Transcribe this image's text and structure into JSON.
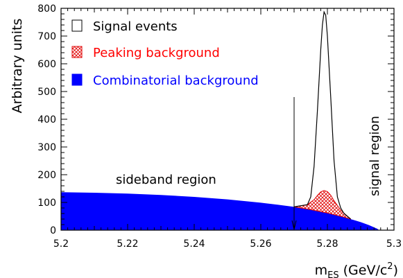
{
  "chart_data": {
    "type": "area",
    "title": "",
    "xlabel": "m_ES (GeV/c^2)",
    "xlabel_parts": {
      "main": "m",
      "sub": "ES",
      "unit": " (GeV/c",
      "sup": "2",
      "close": ")"
    },
    "ylabel": "Arbitrary units",
    "xlim": [
      5.2,
      5.3
    ],
    "ylim": [
      0,
      800
    ],
    "xticks": [
      5.2,
      5.22,
      5.24,
      5.26,
      5.28,
      5.3
    ],
    "xtick_labels": [
      "5.2",
      "5.22",
      "5.24",
      "5.26",
      "5.28",
      "5.3"
    ],
    "yticks": [
      0,
      100,
      200,
      300,
      400,
      500,
      600,
      700,
      800
    ],
    "ytick_labels": [
      "0",
      "100",
      "200",
      "300",
      "400",
      "500",
      "600",
      "700",
      "800"
    ],
    "grid": false,
    "legend_position": "top-left",
    "series": [
      {
        "name": "Combinatorial background",
        "style": "filled",
        "color": "#0000ff",
        "x": [
          5.2,
          5.21,
          5.22,
          5.23,
          5.24,
          5.25,
          5.26,
          5.265,
          5.27,
          5.275,
          5.28,
          5.285,
          5.29,
          5.2925,
          5.295,
          5.2955
        ],
        "values": [
          137,
          135,
          132,
          127,
          120,
          111,
          99,
          92,
          84,
          74,
          62,
          47,
          29,
          18,
          5,
          0
        ]
      },
      {
        "name": "Peaking background",
        "style": "hatched",
        "color": "#ff0000",
        "x": [
          5.27,
          5.274,
          5.276,
          5.277,
          5.278,
          5.279,
          5.28,
          5.281,
          5.282,
          5.284,
          5.287
        ],
        "values": [
          84,
          92,
          110,
          125,
          138,
          143,
          139,
          126,
          106,
          72,
          40
        ]
      },
      {
        "name": "Signal events",
        "style": "outline",
        "color": "#000000",
        "x": [
          5.27,
          5.274,
          5.275,
          5.276,
          5.277,
          5.278,
          5.2785,
          5.279,
          5.2795,
          5.28,
          5.281,
          5.282,
          5.283,
          5.284,
          5.285,
          5.287
        ],
        "values": [
          84,
          92,
          120,
          230,
          430,
          650,
          740,
          787,
          775,
          700,
          480,
          250,
          120,
          80,
          60,
          40
        ]
      }
    ],
    "annotations": [
      {
        "text": "sideband region"
      },
      {
        "text": "signal region",
        "orientation": "vertical"
      }
    ],
    "boundary_marker": {
      "x": 5.27,
      "y_top": 480,
      "y_bottom": 0
    }
  }
}
